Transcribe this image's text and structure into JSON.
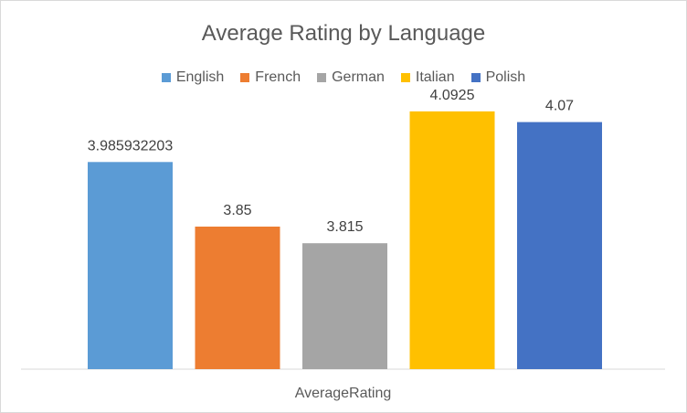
{
  "chart_data": {
    "type": "bar",
    "title": "Average Rating by Language",
    "categories": [
      "AverageRating"
    ],
    "xlabel": "",
    "ylabel": "",
    "legend_position": "top",
    "gridlines": false,
    "ylim": [
      3.55,
      4.2
    ],
    "series": [
      {
        "name": "English",
        "values": [
          3.985932203
        ],
        "label": "3.985932203",
        "color": "#5b9bd5"
      },
      {
        "name": "French",
        "values": [
          3.85
        ],
        "label": "3.85",
        "color": "#ed7d31"
      },
      {
        "name": "German",
        "values": [
          3.815
        ],
        "label": "3.815",
        "color": "#a5a5a5"
      },
      {
        "name": "Italian",
        "values": [
          4.0925
        ],
        "label": "4.0925",
        "color": "#ffc000"
      },
      {
        "name": "Polish",
        "values": [
          4.07
        ],
        "label": "4.07",
        "color": "#4472c4"
      }
    ]
  }
}
